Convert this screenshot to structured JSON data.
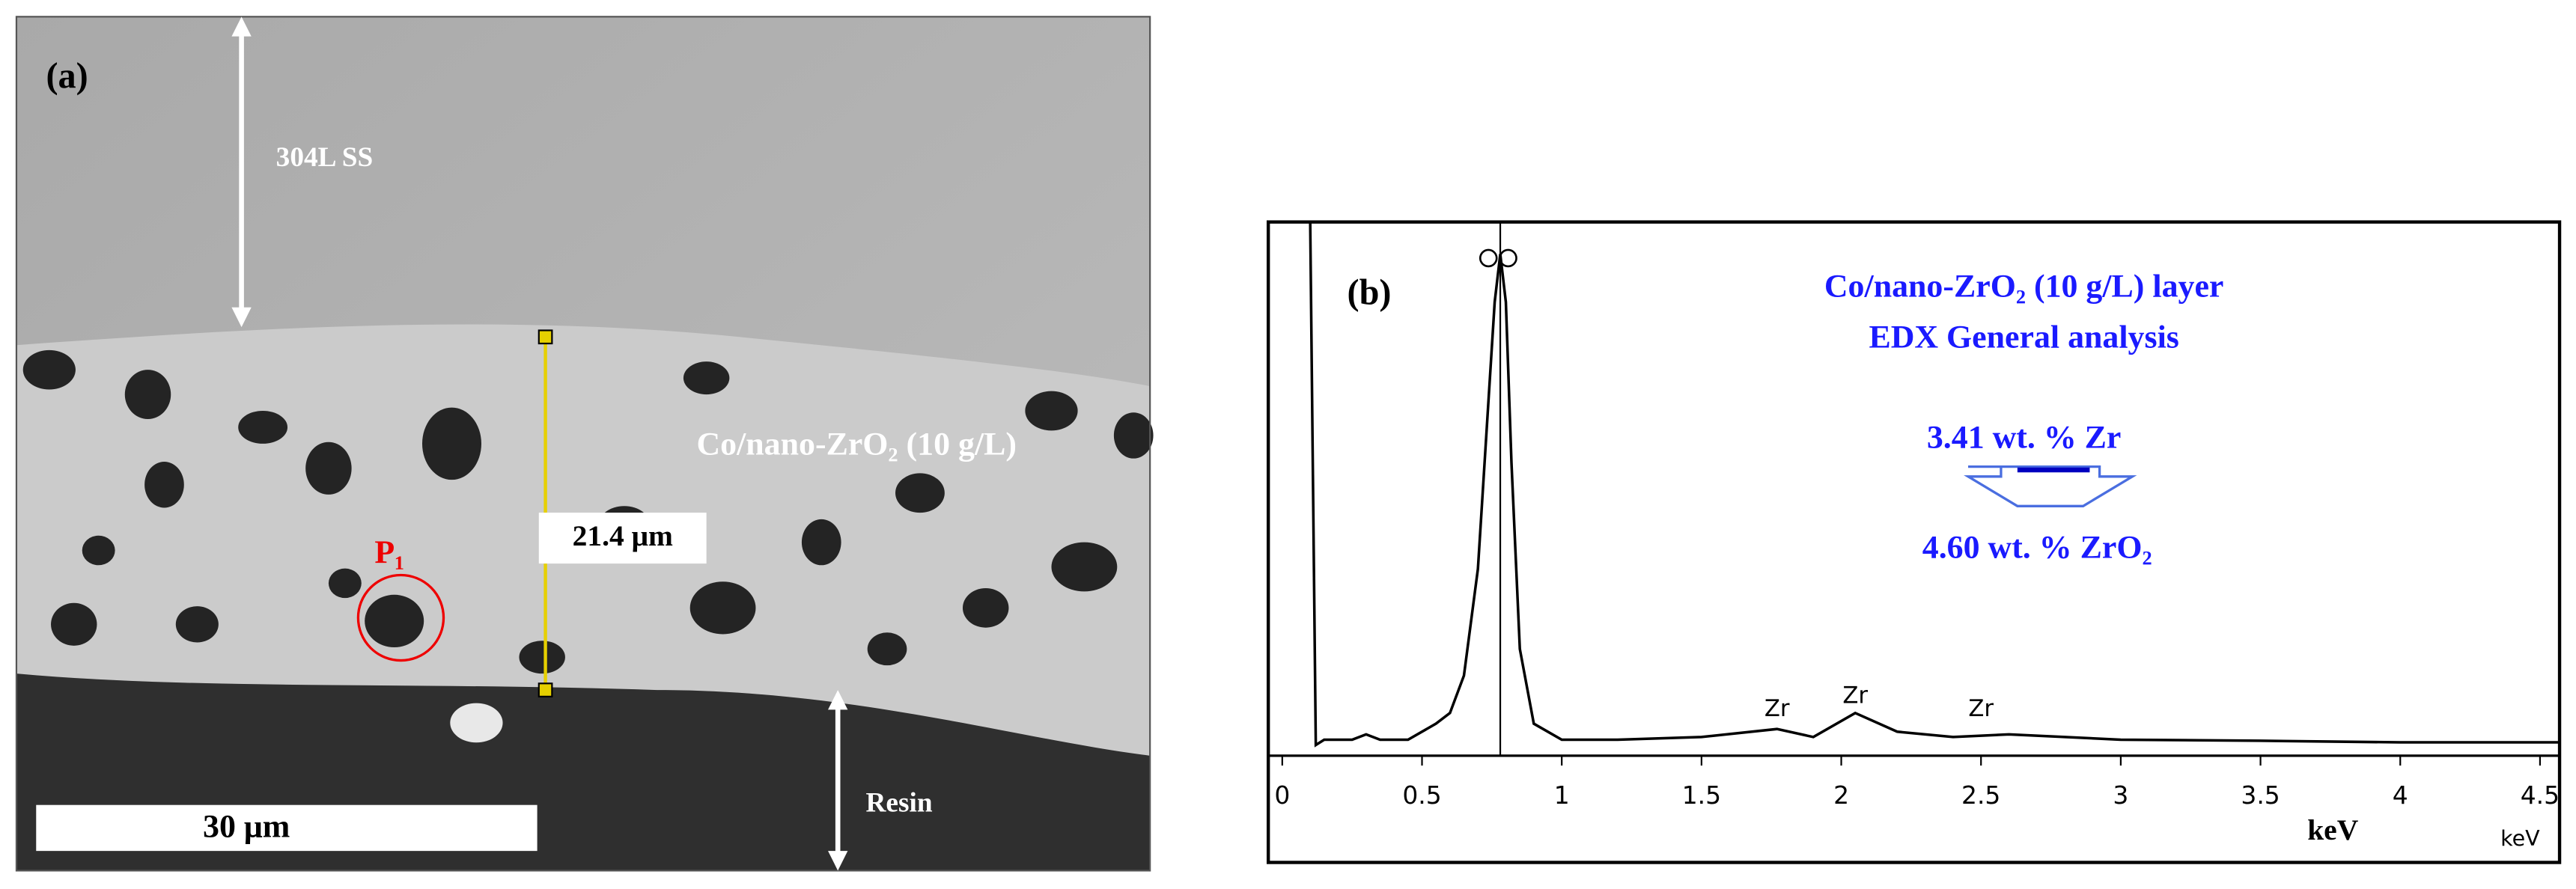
{
  "panel_a": {
    "panel_label": "(a)",
    "substrate_label": "304L SS",
    "coating_label": "Co/nano-ZrO₂ (10 g/L)",
    "point_label": "P₁",
    "thickness_label": "21.4 μm",
    "resin_label": "Resin",
    "scale_bar_label": "30 μm"
  },
  "chart_data": {
    "type": "line",
    "panel_label": "(b)",
    "annotations": [
      "Co/nano-ZrO₂ (10 g/L) layer",
      "EDX General analysis",
      "3.41 wt. % Zr",
      "4.60 wt. % ZrO₂"
    ],
    "xlabel": "keV",
    "axis_unit": "keV",
    "x": [
      0.0,
      0.1,
      0.12,
      0.15,
      0.25,
      0.3,
      0.35,
      0.45,
      0.55,
      0.6,
      0.65,
      0.7,
      0.73,
      0.76,
      0.78,
      0.8,
      0.82,
      0.85,
      0.9,
      1.0,
      1.2,
      1.5,
      1.77,
      1.9,
      2.05,
      2.2,
      2.4,
      2.6,
      3.0,
      3.5,
      4.0,
      4.5,
      4.57
    ],
    "values": [
      100,
      100,
      2,
      3,
      3,
      4,
      3,
      3,
      6,
      8,
      15,
      35,
      60,
      85,
      94,
      85,
      55,
      20,
      6,
      3,
      3,
      3.5,
      5,
      3.5,
      8,
      4.5,
      3.5,
      4,
      3,
      2.8,
      2.5,
      2.5,
      2.5
    ],
    "color": "#000000",
    "marker_x": 0.78,
    "peak_labels": {
      "labels": [
        "Zr",
        "Zr",
        "Zr"
      ],
      "x": [
        1.77,
        2.05,
        2.5
      ]
    },
    "xlim": [
      -0.05,
      4.57
    ],
    "xticks": [
      0,
      0.5,
      1,
      1.5,
      2,
      2.5,
      3,
      3.5,
      4,
      4.5
    ],
    "ylim": [
      0,
      100
    ]
  }
}
